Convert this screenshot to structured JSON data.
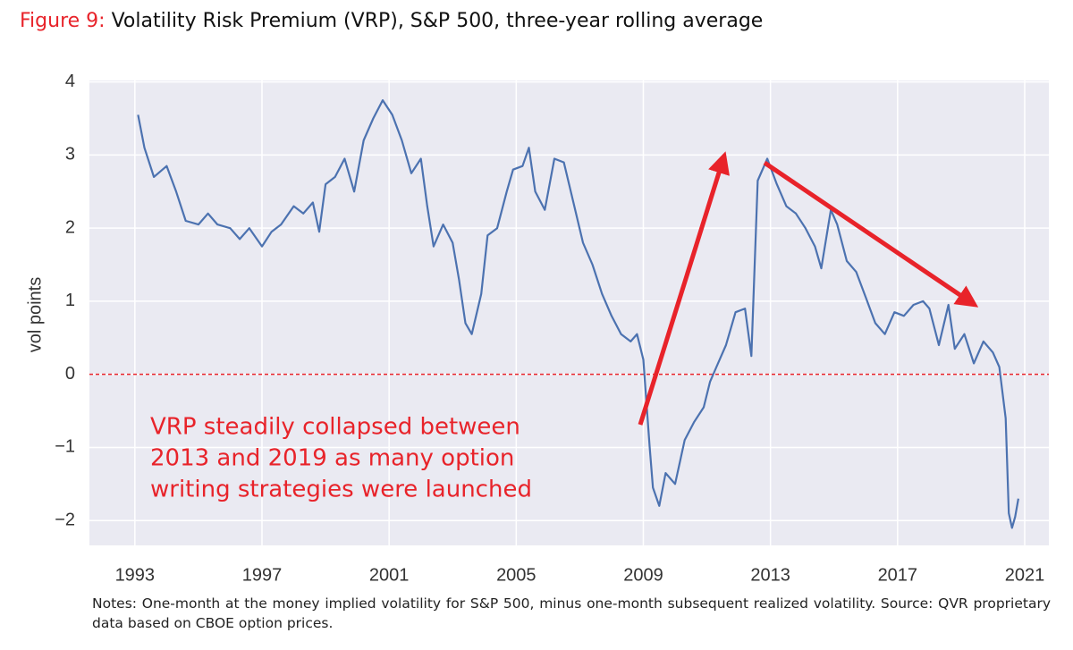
{
  "chart_data": {
    "type": "line",
    "title_label": "Figure 9:",
    "title": "Volatility Risk Premium (VRP), S&P 500, three-year rolling average",
    "y_label": "vol points",
    "annotation": [
      "VRP steadily collapsed between",
      "2013 and 2019 as many option",
      "writing strategies were launched"
    ],
    "note": "Notes: One-month at the money implied volatility for S&P 500, minus one-month subsequent realized volatility. Source: QVR proprietary data based on CBOE option prices.",
    "x": [
      1993.1,
      1993.3,
      1993.6,
      1994.0,
      1994.3,
      1994.6,
      1995.0,
      1995.3,
      1995.6,
      1996.0,
      1996.3,
      1996.6,
      1997.0,
      1997.3,
      1997.6,
      1998.0,
      1998.3,
      1998.6,
      1998.8,
      1999.0,
      1999.3,
      1999.6,
      1999.9,
      2000.2,
      2000.5,
      2000.8,
      2001.1,
      2001.4,
      2001.7,
      2002.0,
      2002.2,
      2002.4,
      2002.7,
      2003.0,
      2003.2,
      2003.4,
      2003.6,
      2003.9,
      2004.1,
      2004.4,
      2004.7,
      2004.9,
      2005.2,
      2005.4,
      2005.6,
      2005.9,
      2006.2,
      2006.5,
      2006.8,
      2007.1,
      2007.4,
      2007.7,
      2008.0,
      2008.3,
      2008.6,
      2008.8,
      2009.0,
      2009.2,
      2009.3,
      2009.5,
      2009.7,
      2010.0,
      2010.3,
      2010.6,
      2010.9,
      2011.1,
      2011.3,
      2011.6,
      2011.9,
      2012.2,
      2012.4,
      2012.6,
      2012.9,
      2013.2,
      2013.5,
      2013.8,
      2014.1,
      2014.4,
      2014.6,
      2014.9,
      2015.1,
      2015.4,
      2015.7,
      2016.0,
      2016.3,
      2016.6,
      2016.9,
      2017.2,
      2017.5,
      2017.8,
      2018.0,
      2018.3,
      2018.6,
      2018.8,
      2019.1,
      2019.4,
      2019.7,
      2020.0,
      2020.2,
      2020.4,
      2020.5,
      2020.6,
      2020.7,
      2020.8
    ],
    "series": [
      {
        "color": "#4c72b0",
        "values": [
          3.55,
          3.1,
          2.7,
          2.85,
          2.5,
          2.1,
          2.05,
          2.2,
          2.05,
          2.0,
          1.85,
          2.0,
          1.75,
          1.95,
          2.05,
          2.3,
          2.2,
          2.35,
          1.95,
          2.6,
          2.7,
          2.95,
          2.5,
          3.2,
          3.5,
          3.75,
          3.55,
          3.2,
          2.75,
          2.95,
          2.3,
          1.75,
          2.05,
          1.8,
          1.3,
          0.7,
          0.55,
          1.1,
          1.9,
          2.0,
          2.5,
          2.8,
          2.85,
          3.1,
          2.5,
          2.25,
          2.95,
          2.9,
          2.35,
          1.8,
          1.5,
          1.1,
          0.8,
          0.55,
          0.45,
          0.55,
          0.2,
          -1.0,
          -1.55,
          -1.8,
          -1.35,
          -1.5,
          -0.9,
          -0.65,
          -0.45,
          -0.1,
          0.1,
          0.4,
          0.85,
          0.9,
          0.25,
          2.65,
          2.95,
          2.6,
          2.3,
          2.2,
          2.0,
          1.75,
          1.45,
          2.25,
          2.05,
          1.55,
          1.4,
          1.05,
          0.7,
          0.55,
          0.85,
          0.8,
          0.95,
          1.0,
          0.9,
          0.4,
          0.95,
          0.35,
          0.55,
          0.15,
          0.45,
          0.3,
          0.1,
          -0.6,
          -1.9,
          -2.1,
          -1.95,
          -1.7
        ]
      }
    ],
    "xlim": [
      1991.57,
      2021.76
    ],
    "xticks": [
      1993,
      1997,
      2001,
      2005,
      2009,
      2013,
      2017,
      2021
    ],
    "ylim": [
      -2.34,
      4.02
    ],
    "yticks": [
      {
        "value": -2,
        "label": "−2"
      },
      {
        "value": -1,
        "label": "−1"
      },
      0,
      1,
      2,
      3,
      4
    ],
    "reference_line": {
      "value": 0,
      "color": "#e8232a"
    },
    "grid": true,
    "background": "#eaeaf2",
    "title_label_color": "#e8232a",
    "annotation_color": "#e8232a"
  }
}
